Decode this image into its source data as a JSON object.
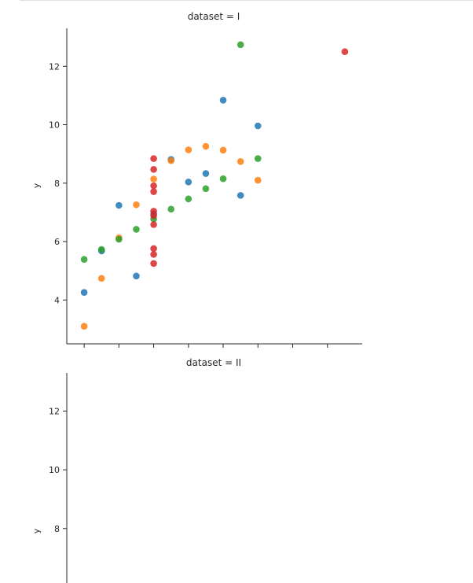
{
  "chart_data": [
    {
      "type": "scatter",
      "title": "dataset = I",
      "xlabel": "",
      "ylabel": "y",
      "xlim": [
        3.0,
        20.0
      ],
      "ylim": [
        2.5,
        13.3
      ],
      "xticks": [
        4,
        6,
        8,
        10,
        12,
        14,
        16,
        18
      ],
      "yticks": [
        4,
        6,
        8,
        10,
        12
      ],
      "ytick_labels": [
        "4",
        "6",
        "8",
        "10",
        "12"
      ],
      "grid": false,
      "series": [
        {
          "color": "#1f77b4",
          "points": [
            [
              4,
              4.26
            ],
            [
              5,
              5.68
            ],
            [
              6,
              7.24
            ],
            [
              7,
              4.82
            ],
            [
              8,
              6.95
            ],
            [
              9,
              8.81
            ],
            [
              10,
              8.04
            ],
            [
              11,
              8.33
            ],
            [
              12,
              10.84
            ],
            [
              13,
              7.58
            ],
            [
              14,
              9.96
            ]
          ]
        },
        {
          "color": "#ff7f0e",
          "points": [
            [
              4,
              3.1
            ],
            [
              5,
              4.74
            ],
            [
              6,
              6.13
            ],
            [
              7,
              7.26
            ],
            [
              8,
              8.14
            ],
            [
              9,
              8.77
            ],
            [
              10,
              9.14
            ],
            [
              11,
              9.26
            ],
            [
              12,
              9.13
            ],
            [
              13,
              8.74
            ],
            [
              14,
              8.1
            ]
          ]
        },
        {
          "color": "#2ca02c",
          "points": [
            [
              4,
              5.39
            ],
            [
              5,
              5.73
            ],
            [
              6,
              6.08
            ],
            [
              7,
              6.42
            ],
            [
              8,
              6.77
            ],
            [
              9,
              7.11
            ],
            [
              10,
              7.46
            ],
            [
              11,
              7.81
            ],
            [
              12,
              8.15
            ],
            [
              13,
              12.74
            ],
            [
              14,
              8.84
            ]
          ]
        },
        {
          "color": "#d62728",
          "points": [
            [
              8,
              6.58
            ],
            [
              8,
              5.76
            ],
            [
              8,
              7.71
            ],
            [
              8,
              8.84
            ],
            [
              8,
              8.47
            ],
            [
              8,
              7.04
            ],
            [
              8,
              5.25
            ],
            [
              19,
              12.5
            ],
            [
              8,
              5.56
            ],
            [
              8,
              7.91
            ],
            [
              8,
              6.89
            ]
          ]
        }
      ]
    },
    {
      "type": "scatter",
      "title": "dataset = II",
      "xlabel": "",
      "ylabel": "y",
      "ylim": [
        2.5,
        13.3
      ],
      "yticks": [
        8,
        10,
        12
      ],
      "ytick_labels": [
        "8",
        "10",
        "12"
      ],
      "grid": false,
      "series": []
    }
  ]
}
